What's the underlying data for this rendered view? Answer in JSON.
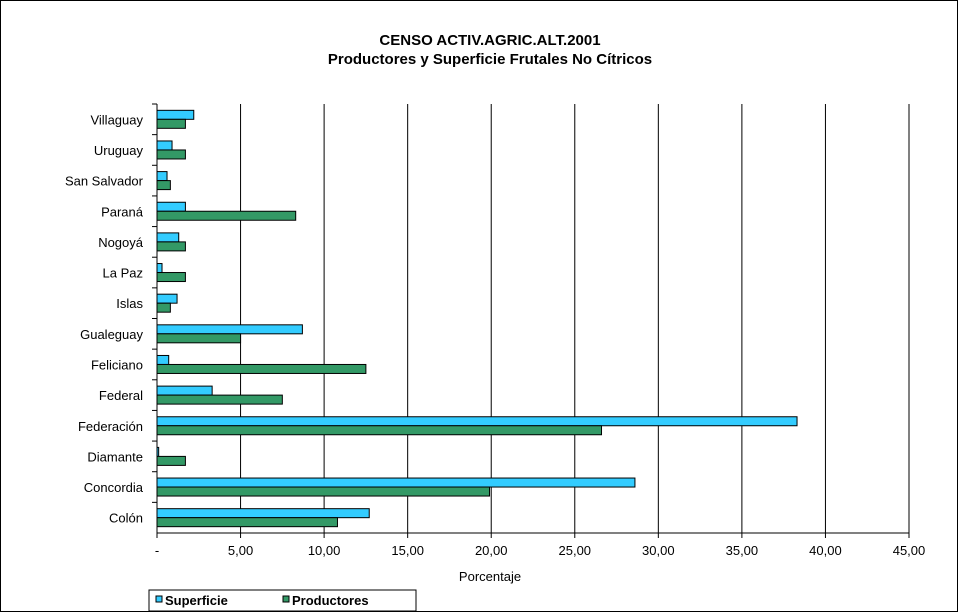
{
  "chart_data": {
    "type": "bar",
    "orientation": "horizontal",
    "title": "CENSO ACTIV.AGRIC.ALT.2001",
    "subtitle": "Productores y Superficie Frutales No Cítricos",
    "xlabel": "Porcentaje",
    "ylabel": "",
    "xlim": [
      0,
      45
    ],
    "x_ticks": [
      "-",
      "5,00",
      "10,00",
      "15,00",
      "20,00",
      "25,00",
      "30,00",
      "35,00",
      "40,00",
      "45,00"
    ],
    "grid": true,
    "legend_position": "bottom-left",
    "categories": [
      "Villaguay",
      "Uruguay",
      "San Salvador",
      "Paraná",
      "Nogoyá",
      "La Paz",
      "Islas",
      "Gualeguay",
      "Feliciano",
      "Federal",
      "Federación",
      "Diamante",
      "Concordia",
      "Colón"
    ],
    "series": [
      {
        "name": "Superficie",
        "color": "#33ccff",
        "values": [
          2.2,
          0.9,
          0.6,
          1.7,
          1.3,
          0.3,
          1.2,
          8.7,
          0.7,
          3.3,
          38.3,
          0.1,
          28.6,
          12.7
        ]
      },
      {
        "name": "Productores",
        "color": "#339966",
        "values": [
          1.7,
          1.7,
          0.8,
          8.3,
          1.7,
          1.7,
          0.8,
          5.0,
          12.5,
          7.5,
          26.6,
          1.7,
          19.9,
          10.8
        ]
      }
    ]
  }
}
